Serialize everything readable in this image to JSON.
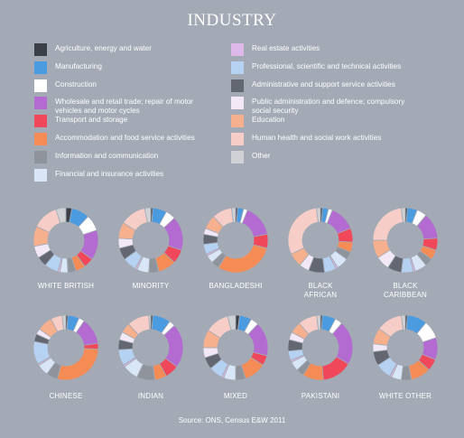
{
  "title": "INDUSTRY",
  "source": "Source: ONS, Census E&W 2011",
  "legend": [
    {
      "label": "Agriculture, energy and water",
      "color": "#3b3f48"
    },
    {
      "label": "Manufacturing",
      "color": "#4a9be0"
    },
    {
      "label": "Construction",
      "color": "#ffffff"
    },
    {
      "label": "Wholesale and retail trade; repair of motor vehicles and motor cycles",
      "color": "#b36ad1"
    },
    {
      "label": "Transport and storage",
      "color": "#f0485a"
    },
    {
      "label": "Accommodation and food service activities",
      "color": "#f58c55"
    },
    {
      "label": "Information and communication",
      "color": "#8f949c"
    },
    {
      "label": "Financial and insurance activities",
      "color": "#d9e6f7"
    },
    {
      "label": "Real estate activities",
      "color": "#ddb8e8"
    },
    {
      "label": "Professional, scientific and technical activities",
      "color": "#b6d2f2"
    },
    {
      "label": "Administrative and support service activities",
      "color": "#626772"
    },
    {
      "label": "Public administration and defence; compulsory social security",
      "color": "#f3e8f5"
    },
    {
      "label": "Education",
      "color": "#f7b08d"
    },
    {
      "label": "Human health and social work activities",
      "color": "#f7cdc8"
    },
    {
      "label": "Other",
      "color": "#cfd1d5"
    }
  ],
  "chart_data": [
    {
      "type": "pie",
      "name": "WHITE BRITISH",
      "values": [
        3,
        9,
        8,
        15,
        5,
        5,
        4,
        4,
        1,
        7,
        5,
        6,
        10,
        13,
        5
      ]
    },
    {
      "type": "pie",
      "name": "MINORITY",
      "values": [
        1,
        7,
        5,
        17,
        7,
        9,
        5,
        6,
        1,
        7,
        6,
        5,
        8,
        13,
        3
      ]
    },
    {
      "type": "pie",
      "name": "BANGLADESHI",
      "values": [
        1,
        3,
        2,
        16,
        7,
        30,
        4,
        4,
        1,
        5,
        5,
        3,
        7,
        10,
        2
      ]
    },
    {
      "type": "pie",
      "name": "BLACK AFRICAN",
      "values": [
        1,
        3,
        2,
        13,
        7,
        5,
        4,
        6,
        1,
        6,
        8,
        5,
        7,
        30,
        2
      ]
    },
    {
      "type": "pie",
      "name": "BLACK CARIBBEAN",
      "values": [
        1,
        5,
        5,
        13,
        6,
        5,
        4,
        6,
        1,
        6,
        7,
        7,
        9,
        23,
        2
      ]
    },
    {
      "type": "pie",
      "name": "CHINESE",
      "values": [
        1,
        6,
        3,
        14,
        3,
        30,
        6,
        6,
        1,
        12,
        4,
        3,
        8,
        6,
        2
      ]
    },
    {
      "type": "pie",
      "name": "INDIAN",
      "values": [
        1,
        9,
        3,
        22,
        7,
        6,
        9,
        8,
        1,
        8,
        5,
        4,
        5,
        11,
        1
      ]
    },
    {
      "type": "pie",
      "name": "MIXED",
      "values": [
        2,
        6,
        4,
        17,
        5,
        11,
        5,
        6,
        1,
        7,
        6,
        5,
        9,
        12,
        4
      ]
    },
    {
      "type": "pie",
      "name": "PAKISTANI",
      "values": [
        1,
        7,
        4,
        23,
        16,
        11,
        4,
        5,
        1,
        5,
        6,
        4,
        6,
        10,
        2
      ]
    },
    {
      "type": "pie",
      "name": "WHITE OTHER",
      "values": [
        1,
        10,
        9,
        11,
        6,
        10,
        5,
        5,
        1,
        8,
        7,
        4,
        8,
        13,
        2
      ]
    }
  ]
}
